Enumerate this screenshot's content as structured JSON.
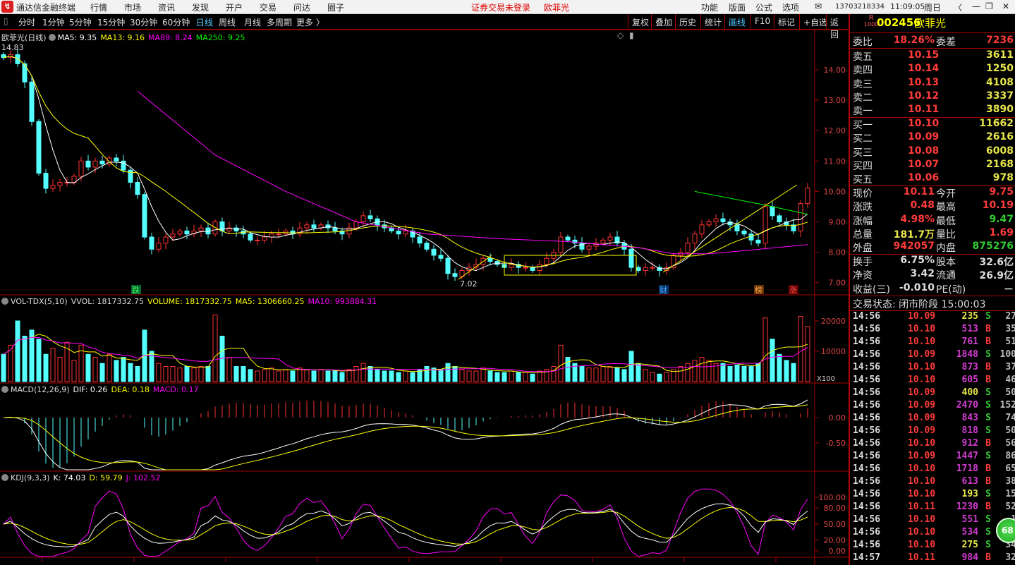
{
  "titlebar": {
    "app": "通达信金融终端",
    "menus": [
      "行情",
      "市场",
      "资讯",
      "发现",
      "开户",
      "交易",
      "问达",
      "圈子"
    ],
    "notice": "证券交易未登录",
    "stock": "欧菲光",
    "right_menus": [
      "功能",
      "版面",
      "公式",
      "选项"
    ],
    "account": "13703218334",
    "time": "11:09:05",
    "weekday": "周日"
  },
  "toolbar": {
    "periods": [
      "分时",
      "1分钟",
      "5分钟",
      "15分钟",
      "30分钟",
      "60分钟",
      "日线",
      "周线",
      "月线",
      "多周期",
      "更多 〉"
    ],
    "active_period": "日线",
    "buttons": [
      "复权",
      "叠加",
      "历史",
      "统计",
      "画线",
      "F10",
      "标记",
      "+自选",
      "返回"
    ],
    "active_button": "画线"
  },
  "main": {
    "title": "欧菲光(日线)",
    "ma5": "MA5: 9.35",
    "ma13": "MA13: 9.16",
    "ma89": "MA89: 8.24",
    "ma250": "MA250: 9.25",
    "high_mark": "14.83",
    "low_mark": "7.02",
    "markers": [
      "跌",
      "财",
      "榜",
      "涨"
    ]
  },
  "volume": {
    "title": "VOL-TDX(5,10)",
    "vvol": "VVOL: 1817332.75",
    "volume": "VOLUME: 1817332.75",
    "ma5": "MA5: 1306660.25",
    "ma10": "MA10: 993884.31",
    "unit": "X100"
  },
  "macd": {
    "title": "MACD(12,26,9)",
    "dif": "DIF: 0.26",
    "dea": "DEA: 0.18",
    "macd": "MACD: 0.17"
  },
  "kdj": {
    "title": "KDJ(9,3,3)",
    "k": "K: 74.03",
    "d": "D: 59.79",
    "j": "J: 102.52"
  },
  "colors": {
    "up": "#ff3232",
    "down": "#54ffff",
    "ma5": "#ffffff",
    "ma13": "#ffff00",
    "ma89": "#ff00ff",
    "ma250": "#00ff00",
    "grid": "#a00000"
  },
  "chart_data": [
    {
      "type": "candlestick",
      "name": "price",
      "yticks": [
        "14.00",
        "13.00",
        "12.00",
        "11.00",
        "10.00",
        "9.00",
        "8.00",
        "7.00"
      ],
      "ylim": [
        7,
        14
      ],
      "close": [
        14.4,
        14.5,
        14.2,
        13.6,
        12.3,
        10.6,
        10.1,
        10.2,
        10.3,
        10.3,
        10.5,
        11.0,
        10.8,
        11.0,
        10.9,
        11.1,
        11.0,
        10.7,
        10.3,
        9.9,
        8.5,
        8.1,
        8.3,
        8.5,
        8.6,
        8.7,
        8.6,
        8.7,
        8.8,
        8.6,
        9.0,
        8.7,
        8.8,
        8.7,
        8.6,
        8.4,
        8.4,
        8.5,
        8.6,
        8.6,
        8.7,
        8.6,
        8.8,
        8.9,
        8.8,
        8.9,
        8.8,
        8.7,
        8.6,
        8.8,
        9.0,
        9.2,
        9.1,
        8.9,
        8.8,
        8.7,
        8.6,
        8.7,
        8.5,
        8.3,
        8.1,
        7.9,
        7.8,
        7.3,
        7.2,
        7.4,
        7.5,
        7.6,
        7.8,
        7.7,
        7.6,
        7.5,
        7.6,
        7.5,
        7.5,
        7.4,
        7.6,
        7.8,
        8.0,
        8.5,
        8.4,
        8.3,
        8.1,
        8.2,
        8.3,
        8.4,
        8.5,
        8.3,
        8.1,
        7.5,
        7.4,
        7.5,
        7.5,
        7.4,
        7.5,
        7.9,
        8.0,
        8.3,
        8.6,
        8.9,
        9.0,
        9.1,
        9.0,
        8.9,
        8.7,
        8.6,
        8.4,
        8.3,
        9.5,
        9.2,
        9.0,
        8.9,
        8.7,
        9.6,
        10.11
      ],
      "ma89": [
        [
          19,
          13.3
        ],
        [
          30,
          11.2
        ],
        [
          40,
          10.0
        ],
        [
          50,
          9.0
        ],
        [
          60,
          8.6
        ],
        [
          70,
          8.45
        ],
        [
          80,
          8.35
        ],
        [
          90,
          8.15
        ],
        [
          95,
          7.95
        ],
        [
          100,
          7.95
        ],
        [
          105,
          8.05
        ],
        [
          114,
          8.25
        ]
      ],
      "ma250": [
        [
          98,
          10.0
        ],
        [
          108,
          9.55
        ],
        [
          114,
          9.25
        ]
      ]
    },
    {
      "type": "bar",
      "name": "volume",
      "yticks": [
        "20000",
        "10000"
      ],
      "values": [
        9000,
        12000,
        20000,
        15000,
        17000,
        14000,
        9000,
        11000,
        8000,
        13000,
        7000,
        12000,
        9000,
        8000,
        6000,
        9000,
        7000,
        8000,
        6000,
        5000,
        17000,
        10000,
        6000,
        5000,
        5000,
        4500,
        5000,
        4500,
        5000,
        5000,
        22000,
        15000,
        8000,
        5000,
        5000,
        4000,
        3500,
        4000,
        4500,
        3500,
        4000,
        3500,
        4500,
        4000,
        3500,
        4000,
        3500,
        3500,
        3000,
        4000,
        5000,
        6000,
        5000,
        4000,
        3500,
        3500,
        3000,
        3500,
        3000,
        4000,
        5000,
        4500,
        4000,
        6000,
        5000,
        4000,
        3500,
        3500,
        4500,
        3500,
        3000,
        3000,
        3500,
        3000,
        3000,
        2500,
        3500,
        4000,
        5000,
        12000,
        8000,
        6000,
        5000,
        4500,
        4500,
        5000,
        5000,
        4500,
        4000,
        10000,
        6000,
        4000,
        3000,
        2500,
        3000,
        4000,
        5000,
        6000,
        7000,
        8000,
        7000,
        6000,
        6000,
        5000,
        5500,
        5000,
        5000,
        6000,
        21000,
        14000,
        9000,
        7000,
        6000,
        21500,
        18173
      ]
    },
    {
      "type": "line",
      "name": "macd",
      "yticks": [
        "0.00",
        "-0.50"
      ]
    },
    {
      "type": "line",
      "name": "kdj",
      "yticks": [
        "100.00",
        "80.00",
        "50.00",
        "20.00",
        "0.00"
      ]
    }
  ],
  "quote": {
    "code": "002456",
    "name": "欧菲光",
    "badge_top": "R",
    "badge_bottom": "1000",
    "webi": {
      "label": "委比",
      "value": "18.26%",
      "label2": "委差",
      "value2": "7236"
    },
    "asks": [
      {
        "label": "卖五",
        "price": "10.15",
        "vol": "3611"
      },
      {
        "label": "卖四",
        "price": "10.14",
        "vol": "1250"
      },
      {
        "label": "卖三",
        "price": "10.13",
        "vol": "4108"
      },
      {
        "label": "卖二",
        "price": "10.12",
        "vol": "3337"
      },
      {
        "label": "卖一",
        "price": "10.11",
        "vol": "3890"
      }
    ],
    "bids": [
      {
        "label": "买一",
        "price": "10.10",
        "vol": "11662"
      },
      {
        "label": "买二",
        "price": "10.09",
        "vol": "2616"
      },
      {
        "label": "买三",
        "price": "10.08",
        "vol": "6008"
      },
      {
        "label": "买四",
        "price": "10.07",
        "vol": "2168"
      },
      {
        "label": "买五",
        "price": "10.06",
        "vol": "978"
      }
    ],
    "stats": [
      {
        "l1": "现价",
        "v1": "10.11",
        "c1": "red",
        "l2": "今开",
        "v2": "9.75",
        "c2": "red"
      },
      {
        "l1": "涨跌",
        "v1": "0.48",
        "c1": "red",
        "l2": "最高",
        "v2": "10.19",
        "c2": "red"
      },
      {
        "l1": "涨幅",
        "v1": "4.98%",
        "c1": "red",
        "l2": "最低",
        "v2": "9.47",
        "c2": "grn"
      },
      {
        "l1": "总量",
        "v1": "181.7万",
        "c1": "yel",
        "l2": "量比",
        "v2": "1.69",
        "c2": "red"
      },
      {
        "l1": "外盘",
        "v1": "942057",
        "c1": "red",
        "l2": "内盘",
        "v2": "875276",
        "c2": "grn"
      }
    ],
    "stats2": [
      {
        "l1": "换手",
        "v1": "6.75%",
        "l2": "股本",
        "v2": "32.6亿"
      },
      {
        "l1": "净资",
        "v1": "3.42",
        "l2": "流通",
        "v2": "26.9亿"
      },
      {
        "l1": "收益(三)",
        "v1": "-0.010",
        "l2": "PE(动)",
        "v2": "－"
      }
    ],
    "status": "交易状态: 闭市阶段 15:00:03",
    "trades": [
      [
        "14:56",
        "10.09",
        "235",
        "S",
        "27"
      ],
      [
        "14:56",
        "10.10",
        "513",
        "B",
        "35"
      ],
      [
        "14:56",
        "10.10",
        "761",
        "B",
        "51"
      ],
      [
        "14:56",
        "10.09",
        "1848",
        "S",
        "100"
      ],
      [
        "14:56",
        "10.10",
        "873",
        "B",
        "37"
      ],
      [
        "14:56",
        "10.10",
        "605",
        "B",
        "46"
      ],
      [
        "14:56",
        "10.09",
        "400",
        "S",
        "50"
      ],
      [
        "14:56",
        "10.09",
        "2470",
        "S",
        "152"
      ],
      [
        "14:56",
        "10.09",
        "843",
        "S",
        "74"
      ],
      [
        "14:56",
        "10.09",
        "818",
        "S",
        "50"
      ],
      [
        "14:56",
        "10.10",
        "912",
        "B",
        "56"
      ],
      [
        "14:56",
        "10.09",
        "1447",
        "S",
        "86"
      ],
      [
        "14:56",
        "10.10",
        "1718",
        "B",
        "65"
      ],
      [
        "14:56",
        "10.10",
        "613",
        "B",
        "38"
      ],
      [
        "14:56",
        "10.10",
        "193",
        "S",
        "15"
      ],
      [
        "14:56",
        "10.11",
        "1230",
        "B",
        "52"
      ],
      [
        "14:56",
        "10.10",
        "551",
        "S",
        "1"
      ],
      [
        "14:56",
        "10.10",
        "534",
        "S",
        ""
      ],
      [
        "14:56",
        "10.10",
        "275",
        "S",
        "34"
      ],
      [
        "14:57",
        "10.11",
        "984",
        "B",
        "32"
      ]
    ],
    "float_badge": "68"
  }
}
